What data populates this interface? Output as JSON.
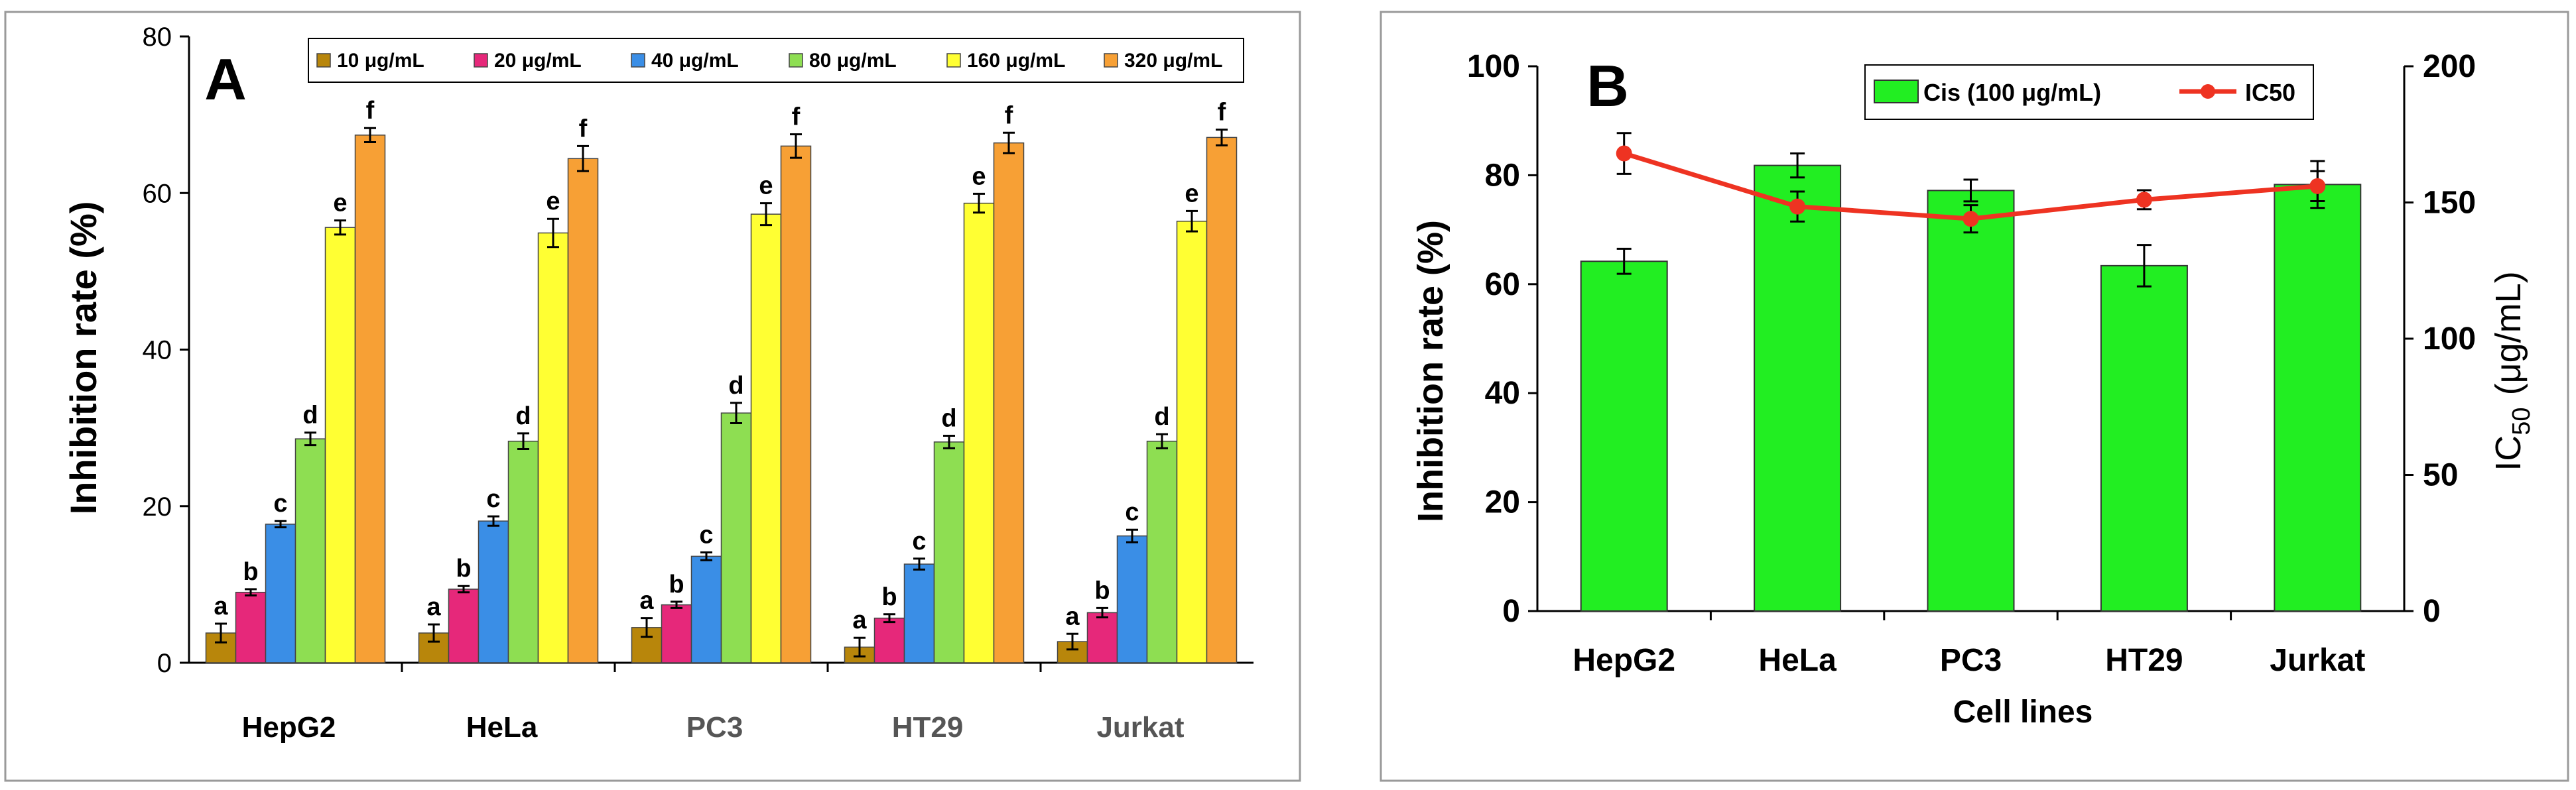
{
  "chart_data": [
    {
      "type": "bar",
      "panel_label": "A",
      "title": "",
      "xlabel": "",
      "ylabel": "Inhibition rate (%)",
      "ylim": [
        0,
        80
      ],
      "yticks": [
        "0",
        "20",
        "40",
        "60",
        "80"
      ],
      "categories": [
        "HepG2",
        "HeLa",
        "PC3",
        "HT29",
        "Jurkat"
      ],
      "grid": false,
      "legend_position": "top",
      "series": [
        {
          "name": "10 μg/mL",
          "color": "#b8860b",
          "values": [
            3.8,
            3.8,
            4.5,
            2.0,
            2.7
          ],
          "errors": [
            1.2,
            1.1,
            1.2,
            1.2,
            1.0
          ],
          "letters": [
            "a",
            "a",
            "a",
            "a",
            "a"
          ]
        },
        {
          "name": "20 μg/mL",
          "color": "#e6287a",
          "values": [
            9.0,
            9.4,
            7.4,
            5.7,
            6.4
          ],
          "errors": [
            0.4,
            0.4,
            0.4,
            0.5,
            0.6
          ],
          "letters": [
            "b",
            "b",
            "b",
            "b",
            "b"
          ]
        },
        {
          "name": "40 μg/mL",
          "color": "#3a8ee6",
          "values": [
            17.7,
            18.1,
            13.6,
            12.6,
            16.2
          ],
          "errors": [
            0.4,
            0.6,
            0.5,
            0.7,
            0.8
          ],
          "letters": [
            "c",
            "c",
            "c",
            "c",
            "c"
          ]
        },
        {
          "name": "80 μg/mL",
          "color": "#8ede52",
          "values": [
            28.6,
            28.3,
            31.9,
            28.2,
            28.3
          ],
          "errors": [
            0.8,
            1.0,
            1.3,
            0.8,
            0.9
          ],
          "letters": [
            "d",
            "d",
            "d",
            "d",
            "d"
          ]
        },
        {
          "name": "160 μg/mL",
          "color": "#ffff33",
          "values": [
            55.6,
            54.9,
            57.3,
            58.7,
            56.4
          ],
          "errors": [
            0.9,
            1.8,
            1.4,
            1.2,
            1.3
          ],
          "letters": [
            "e",
            "e",
            "e",
            "e",
            "e"
          ]
        },
        {
          "name": "320 μg/mL",
          "color": "#f7a035",
          "values": [
            67.4,
            64.4,
            66.0,
            66.4,
            67.1
          ],
          "errors": [
            0.9,
            1.6,
            1.5,
            1.3,
            1.0
          ],
          "letters": [
            "f",
            "f",
            "f",
            "f",
            "f"
          ]
        }
      ]
    },
    {
      "type": "bar",
      "panel_label": "B",
      "title": "",
      "xlabel": "Cell lines",
      "ylabel": "Inhibition rate (%)",
      "y2label_main": "IC",
      "y2label_sub": "50",
      "y2label_unit": "(μg/mL)",
      "ylim": [
        0,
        100
      ],
      "yticks": [
        "0",
        "20",
        "40",
        "60",
        "80",
        "100"
      ],
      "y2lim": [
        0,
        200
      ],
      "y2ticks": [
        "0",
        "50",
        "100",
        "150",
        "200"
      ],
      "categories": [
        "HepG2",
        "HeLa",
        "PC3",
        "HT29",
        "Jurkat"
      ],
      "grid": false,
      "legend_position": "top",
      "series": [
        {
          "name": "Cis (100 μg/mL)",
          "type": "bar",
          "axis": "left",
          "color": "#22ee22",
          "values": [
            64.2,
            81.8,
            77.2,
            63.4,
            78.3
          ],
          "errors": [
            2.3,
            2.2,
            2.0,
            3.8,
            4.3
          ]
        },
        {
          "name": "IC50",
          "type": "line",
          "axis": "right",
          "color": "#ee3322",
          "values": [
            168.0,
            148.5,
            144.0,
            151.0,
            156.0
          ],
          "errors": [
            7.5,
            5.5,
            5.0,
            3.5,
            5.5
          ]
        }
      ]
    }
  ]
}
